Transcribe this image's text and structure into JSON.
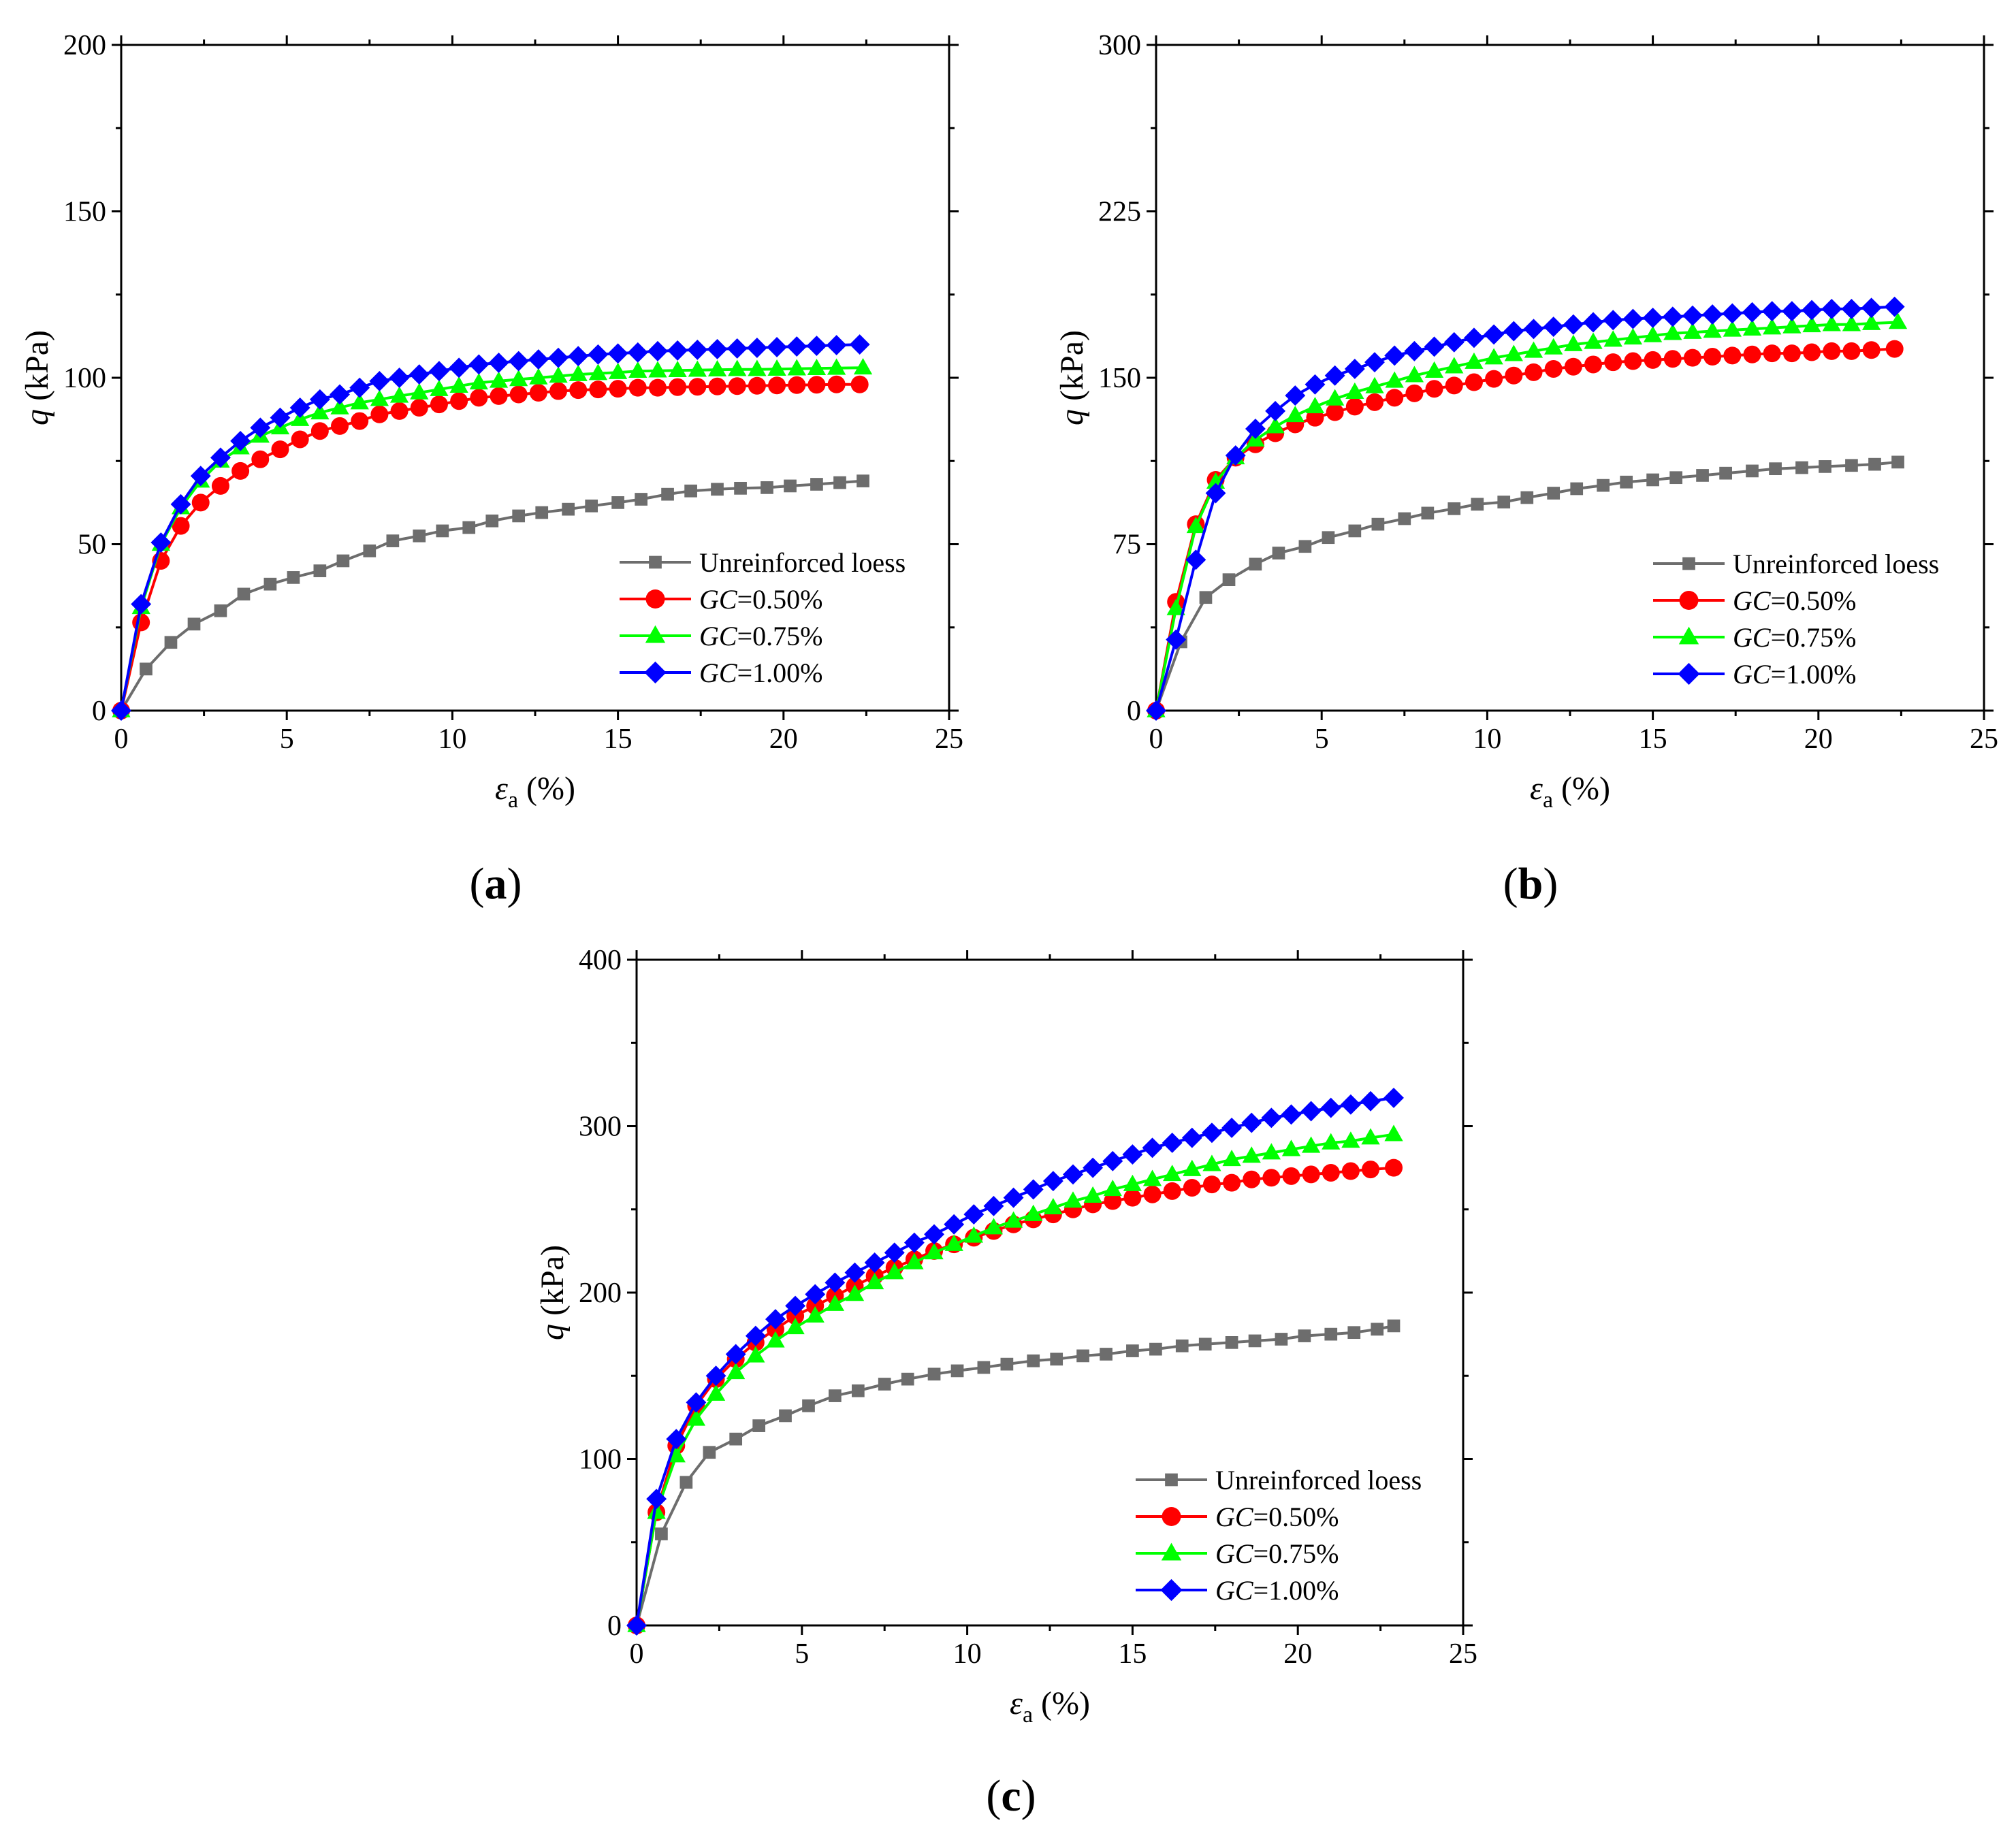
{
  "figure": {
    "panels": [
      {
        "id": "a",
        "caption": "(a)",
        "caption_letter": "a"
      },
      {
        "id": "b",
        "caption": "(b)",
        "caption_letter": "b"
      },
      {
        "id": "c",
        "caption": "(c)",
        "caption_letter": "c"
      }
    ]
  },
  "legend": [
    {
      "name": "Unreinforced loess",
      "prefix": "",
      "rest": "Unreinforced loess",
      "color": "#6d6d6d",
      "marker": "square"
    },
    {
      "name": "GC=0.50%",
      "prefix": "GC",
      "rest": "=0.50%",
      "color": "#ff0000",
      "marker": "circle"
    },
    {
      "name": "GC=0.75%",
      "prefix": "GC",
      "rest": "=0.75%",
      "color": "#00ff00",
      "marker": "triangle"
    },
    {
      "name": "GC=1.00%",
      "prefix": "GC",
      "rest": "=1.00%",
      "color": "#0000ff",
      "marker": "diamond"
    }
  ],
  "chart_data": [
    {
      "panel": "a",
      "type": "line",
      "title": "",
      "xlabel_symbol": "ε",
      "xlabel_sub": "a",
      "xlabel_unit": " (%)",
      "ylabel_symbol": "q",
      "ylabel_unit": " (kPa)",
      "xlim": [
        0,
        25
      ],
      "ylim": [
        0,
        200
      ],
      "xticks": [
        0,
        5,
        10,
        15,
        20,
        25
      ],
      "yticks": [
        0,
        50,
        100,
        150,
        200
      ],
      "series": [
        {
          "name": "Unreinforced loess",
          "x": [
            0,
            0.75,
            1.5,
            2.2,
            3.0,
            3.7,
            4.5,
            5.2,
            6.0,
            6.7,
            7.5,
            8.2,
            9.0,
            9.7,
            10.5,
            11.2,
            12.0,
            12.7,
            13.5,
            14.2,
            15.0,
            15.7,
            16.5,
            17.2,
            18.0,
            18.7,
            19.5,
            20.2,
            21.0,
            21.7,
            22.4
          ],
          "y": [
            0,
            12.5,
            20.5,
            26,
            30,
            35,
            38,
            40,
            42,
            45,
            48,
            51,
            52.5,
            54,
            55,
            57,
            58.5,
            59.5,
            60.5,
            61.5,
            62.5,
            63.5,
            65,
            66,
            66.5,
            66.8,
            67,
            67.5,
            68,
            68.5,
            69
          ]
        },
        {
          "name": "GC=0.50%",
          "x": [
            0,
            0.6,
            1.2,
            1.8,
            2.4,
            3.0,
            3.6,
            4.2,
            4.8,
            5.4,
            6.0,
            6.6,
            7.2,
            7.8,
            8.4,
            9.0,
            9.6,
            10.2,
            10.8,
            11.4,
            12.0,
            12.6,
            13.2,
            13.8,
            14.4,
            15.0,
            15.6,
            16.2,
            16.8,
            17.4,
            18.0,
            18.6,
            19.2,
            19.8,
            20.4,
            21.0,
            21.6,
            22.3
          ],
          "y": [
            0,
            26.5,
            45,
            55.5,
            62.5,
            67.5,
            72,
            75.5,
            78.5,
            81.5,
            84,
            85.5,
            87,
            89,
            90,
            91,
            92,
            93,
            94,
            94.5,
            95,
            95.5,
            96,
            96.3,
            96.5,
            96.7,
            97,
            97,
            97.2,
            97.3,
            97.4,
            97.5,
            97.6,
            97.7,
            97.8,
            97.9,
            98,
            98
          ]
        },
        {
          "name": "GC=0.75%",
          "x": [
            0,
            0.6,
            1.2,
            1.8,
            2.4,
            3.0,
            3.6,
            4.2,
            4.8,
            5.4,
            6.0,
            6.6,
            7.2,
            7.8,
            8.4,
            9.0,
            9.6,
            10.2,
            10.8,
            11.4,
            12.0,
            12.6,
            13.2,
            13.8,
            14.4,
            15.0,
            15.6,
            16.2,
            16.8,
            17.4,
            18.0,
            18.6,
            19.2,
            19.8,
            20.4,
            21.0,
            21.6,
            22.4
          ],
          "y": [
            0,
            31,
            50,
            61,
            69,
            75,
            79,
            82.5,
            85,
            87.5,
            89.5,
            91,
            92.5,
            93.5,
            94.5,
            95.5,
            96.5,
            97.5,
            98.5,
            99,
            99.5,
            100,
            100.5,
            101,
            101.3,
            101.6,
            102,
            102.1,
            102.2,
            102.3,
            102.4,
            102.5,
            102.5,
            102.6,
            102.7,
            102.8,
            102.9,
            103
          ]
        },
        {
          "name": "GC=1.00%",
          "x": [
            0,
            0.6,
            1.2,
            1.8,
            2.4,
            3.0,
            3.6,
            4.2,
            4.8,
            5.4,
            6.0,
            6.6,
            7.2,
            7.8,
            8.4,
            9.0,
            9.6,
            10.2,
            10.8,
            11.4,
            12.0,
            12.6,
            13.2,
            13.8,
            14.4,
            15.0,
            15.6,
            16.2,
            16.8,
            17.4,
            18.0,
            18.6,
            19.2,
            19.8,
            20.4,
            21.0,
            21.6,
            22.3
          ],
          "y": [
            0,
            32,
            50.5,
            62,
            70.5,
            76,
            81,
            85,
            88,
            91,
            93.5,
            95,
            97,
            99,
            100,
            101,
            102,
            103,
            104,
            104.5,
            105,
            105.5,
            106,
            106.5,
            107,
            107.3,
            107.6,
            108,
            108.2,
            108.4,
            108.6,
            108.8,
            109,
            109.2,
            109.4,
            109.6,
            109.8,
            110
          ]
        }
      ]
    },
    {
      "panel": "b",
      "type": "line",
      "title": "",
      "xlabel_symbol": "ε",
      "xlabel_sub": "a",
      "xlabel_unit": " (%)",
      "ylabel_symbol": "q",
      "ylabel_unit": " (kPa)",
      "xlim": [
        0,
        25
      ],
      "ylim": [
        0,
        300
      ],
      "xticks": [
        0,
        5,
        10,
        15,
        20,
        25
      ],
      "yticks": [
        0,
        75,
        150,
        225,
        300
      ],
      "series": [
        {
          "name": "Unreinforced loess",
          "x": [
            0,
            0.75,
            1.5,
            2.2,
            3.0,
            3.7,
            4.5,
            5.2,
            6.0,
            6.7,
            7.5,
            8.2,
            9.0,
            9.7,
            10.5,
            11.2,
            12.0,
            12.7,
            13.5,
            14.2,
            15.0,
            15.7,
            16.5,
            17.2,
            18.0,
            18.7,
            19.5,
            20.2,
            21.0,
            21.7,
            22.4
          ],
          "y": [
            0,
            31,
            51,
            59,
            66,
            71,
            74,
            78,
            81,
            84,
            86.5,
            89,
            91,
            93,
            94,
            96,
            98,
            100,
            101.5,
            103,
            104,
            105,
            106,
            107,
            108,
            109,
            109.5,
            110,
            110.5,
            111,
            112
          ]
        },
        {
          "name": "GC=0.50%",
          "x": [
            0,
            0.6,
            1.2,
            1.8,
            2.4,
            3.0,
            3.6,
            4.2,
            4.8,
            5.4,
            6.0,
            6.6,
            7.2,
            7.8,
            8.4,
            9.0,
            9.6,
            10.2,
            10.8,
            11.4,
            12.0,
            12.6,
            13.2,
            13.8,
            14.4,
            15.0,
            15.6,
            16.2,
            16.8,
            17.4,
            18.0,
            18.6,
            19.2,
            19.8,
            20.4,
            21.0,
            21.6,
            22.3
          ],
          "y": [
            0,
            49,
            84,
            104,
            114,
            120,
            125,
            129,
            132,
            134.5,
            137,
            139,
            141,
            143,
            145,
            146.5,
            148,
            149.5,
            151,
            152.5,
            154,
            155,
            156,
            157,
            157.5,
            158,
            158.5,
            159,
            159.5,
            160,
            160.5,
            161,
            161,
            161.5,
            162,
            162,
            162.5,
            163
          ]
        },
        {
          "name": "GC=0.75%",
          "x": [
            0,
            0.6,
            1.2,
            1.8,
            2.4,
            3.0,
            3.6,
            4.2,
            4.8,
            5.4,
            6.0,
            6.6,
            7.2,
            7.8,
            8.4,
            9.0,
            9.6,
            10.2,
            10.8,
            11.4,
            12.0,
            12.6,
            13.2,
            13.8,
            14.4,
            15.0,
            15.6,
            16.2,
            16.8,
            17.4,
            18.0,
            18.6,
            19.2,
            19.8,
            20.4,
            21.0,
            21.6,
            22.4
          ],
          "y": [
            0,
            46,
            83,
            103,
            114,
            122,
            128,
            133,
            137,
            140.5,
            143.5,
            146,
            148.5,
            151,
            153,
            155,
            157,
            159,
            160.5,
            162,
            163.5,
            165,
            166,
            167,
            168,
            169,
            170,
            170.5,
            171,
            171.5,
            172,
            172.5,
            173,
            173.5,
            174,
            174,
            174.5,
            175
          ]
        },
        {
          "name": "GC=1.00%",
          "x": [
            0,
            0.6,
            1.2,
            1.8,
            2.4,
            3.0,
            3.6,
            4.2,
            4.8,
            5.4,
            6.0,
            6.6,
            7.2,
            7.8,
            8.4,
            9.0,
            9.6,
            10.2,
            10.8,
            11.4,
            12.0,
            12.6,
            13.2,
            13.8,
            14.4,
            15.0,
            15.6,
            16.2,
            16.8,
            17.4,
            18.0,
            18.6,
            19.2,
            19.8,
            20.4,
            21.0,
            21.6,
            22.3
          ],
          "y": [
            0,
            32,
            68,
            98,
            115,
            127,
            135,
            142,
            147,
            151,
            154,
            157,
            160,
            162,
            164,
            166,
            168,
            169.5,
            171,
            172,
            173,
            174,
            175,
            176,
            176.5,
            177,
            177.5,
            178,
            178.5,
            179,
            179.5,
            180,
            180,
            180.5,
            181,
            181,
            181.5,
            182
          ]
        }
      ]
    },
    {
      "panel": "c",
      "type": "line",
      "title": "",
      "xlabel_symbol": "ε",
      "xlabel_sub": "a",
      "xlabel_unit": " (%)",
      "ylabel_symbol": "q",
      "ylabel_unit": " (kPa)",
      "xlim": [
        0,
        25
      ],
      "ylim": [
        0,
        400
      ],
      "xticks": [
        0,
        5,
        10,
        15,
        20,
        25
      ],
      "yticks": [
        0,
        100,
        200,
        300,
        400
      ],
      "series": [
        {
          "name": "Unreinforced loess",
          "x": [
            0,
            0.75,
            1.5,
            2.2,
            3.0,
            3.7,
            4.5,
            5.2,
            6.0,
            6.7,
            7.5,
            8.2,
            9.0,
            9.7,
            10.5,
            11.2,
            12.0,
            12.7,
            13.5,
            14.2,
            15.0,
            15.7,
            16.5,
            17.2,
            18.0,
            18.7,
            19.5,
            20.2,
            21.0,
            21.7,
            22.4,
            22.9
          ],
          "y": [
            0,
            55,
            86,
            104,
            112,
            120,
            126,
            132,
            138,
            141,
            145,
            148,
            151,
            153,
            155,
            157,
            159,
            160,
            162,
            163,
            165,
            166,
            168,
            169,
            170,
            171,
            172,
            174,
            175,
            176,
            178,
            180
          ]
        },
        {
          "name": "GC=0.50%",
          "x": [
            0,
            0.6,
            1.2,
            1.8,
            2.4,
            3.0,
            3.6,
            4.2,
            4.8,
            5.4,
            6.0,
            6.6,
            7.2,
            7.8,
            8.4,
            9.0,
            9.6,
            10.2,
            10.8,
            11.4,
            12.0,
            12.6,
            13.2,
            13.8,
            14.4,
            15.0,
            15.6,
            16.2,
            16.8,
            17.4,
            18.0,
            18.6,
            19.2,
            19.8,
            20.4,
            21.0,
            21.6,
            22.2,
            22.9
          ],
          "y": [
            0,
            68,
            108,
            132,
            148,
            160,
            170,
            178,
            186,
            192,
            198,
            204,
            210,
            215,
            220,
            225,
            229,
            233,
            237,
            241,
            244,
            247,
            250,
            253,
            255,
            257,
            259,
            261,
            263,
            265,
            266,
            268,
            269,
            270,
            271,
            272,
            273,
            274,
            275
          ]
        },
        {
          "name": "GC=0.75%",
          "x": [
            0,
            0.6,
            1.2,
            1.8,
            2.4,
            3.0,
            3.6,
            4.2,
            4.8,
            5.4,
            6.0,
            6.6,
            7.2,
            7.8,
            8.4,
            9.0,
            9.6,
            10.2,
            10.8,
            11.4,
            12.0,
            12.6,
            13.2,
            13.8,
            14.4,
            15.0,
            15.6,
            16.2,
            16.8,
            17.4,
            18.0,
            18.6,
            19.2,
            19.8,
            20.4,
            21.0,
            21.6,
            22.2,
            22.9
          ],
          "y": [
            0,
            68,
            102,
            124,
            139,
            152,
            162,
            171,
            179,
            186,
            193,
            199,
            206,
            212,
            218,
            224,
            229,
            234,
            239,
            243,
            247,
            251,
            255,
            258,
            262,
            265,
            268,
            271,
            274,
            277,
            280,
            282,
            284,
            286,
            288,
            290,
            291,
            293,
            295
          ]
        },
        {
          "name": "GC=1.00%",
          "x": [
            0,
            0.6,
            1.2,
            1.8,
            2.4,
            3.0,
            3.6,
            4.2,
            4.8,
            5.4,
            6.0,
            6.6,
            7.2,
            7.8,
            8.4,
            9.0,
            9.6,
            10.2,
            10.8,
            11.4,
            12.0,
            12.6,
            13.2,
            13.8,
            14.4,
            15.0,
            15.6,
            16.2,
            16.8,
            17.4,
            18.0,
            18.6,
            19.2,
            19.8,
            20.4,
            21.0,
            21.6,
            22.2,
            22.9
          ],
          "y": [
            0,
            76,
            112,
            134,
            150,
            163,
            174,
            184,
            192,
            199,
            206,
            212,
            218,
            224,
            230,
            235,
            241,
            247,
            252,
            257,
            262,
            267,
            271,
            275,
            279,
            283,
            287,
            290,
            293,
            296,
            299,
            302,
            305,
            307,
            309,
            311,
            313,
            315,
            317
          ]
        }
      ]
    }
  ]
}
